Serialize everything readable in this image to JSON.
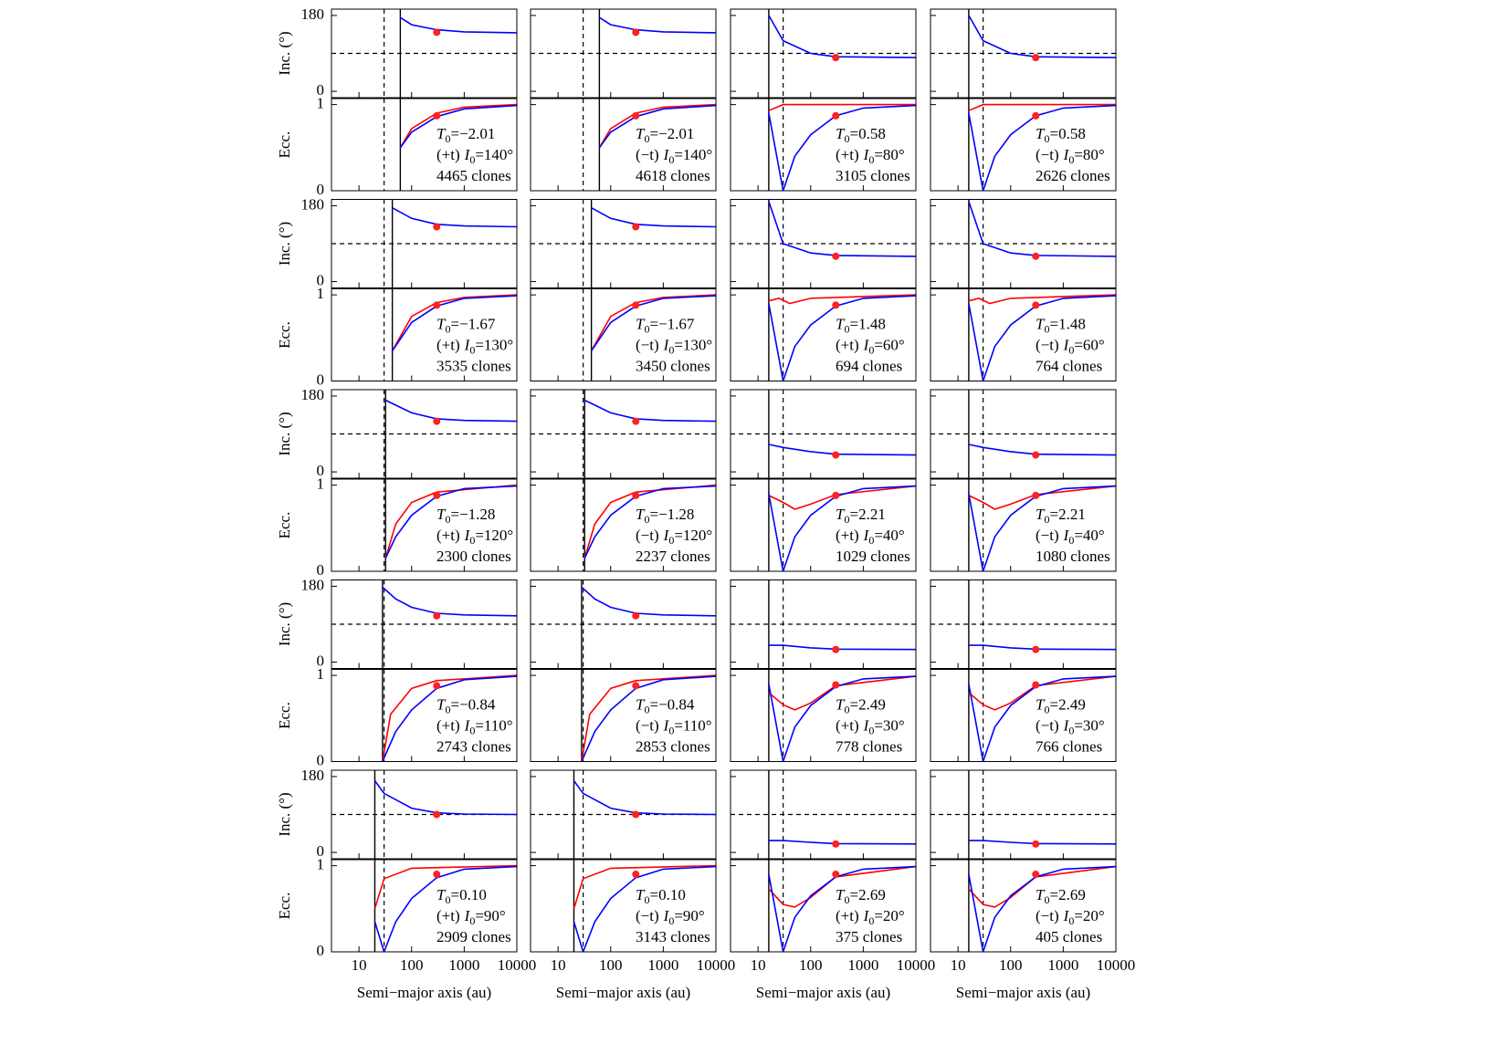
{
  "chart_data": {
    "type": "line",
    "xscale": "log",
    "x_label": "Semi−major axis (au)",
    "inc_label": "Inc. (°)",
    "ecc_label": "Ecc.",
    "t0_symbol": "T",
    "i0_symbol": "I",
    "sub": "0",
    "equals": "=",
    "xlim": [
      3,
      10000
    ],
    "xticks": [
      10,
      100,
      1000,
      10000
    ],
    "inc_ylim": [
      -15,
      195
    ],
    "inc_yticks": [
      0,
      180
    ],
    "ecc_ylim": [
      0,
      1.07
    ],
    "ecc_yticks": [
      0,
      1
    ],
    "inc_ref": 90,
    "a_ref": 30,
    "dot_a": 300,
    "curve_colors": {
      "upper": "#ff0000",
      "lower": "#0000ff"
    },
    "dot_color": "#ff2020",
    "rows": [
      {
        "groups": [
          {
            "T0": "−2.01",
            "I0": "140°",
            "a_min": 61,
            "dot_inc": 140,
            "dot_ecc": 0.87,
            "runs": [
              {
                "dir": "(+t)",
                "clones": "4465 clones"
              },
              {
                "dir": "(−t)",
                "clones": "4618 clones"
              }
            ],
            "inc_curve": {
              "x": [
                61,
                100,
                300,
                1000,
                10000
              ],
              "y": [
                175,
                158,
                146,
                141,
                139
              ]
            },
            "ecc_upper": {
              "x": [
                61,
                100,
                300,
                1000,
                10000
              ],
              "y": [
                0.5,
                0.72,
                0.9,
                0.97,
                1.0
              ]
            },
            "ecc_lower": {
              "x": [
                61,
                100,
                300,
                1000,
                10000
              ],
              "y": [
                0.5,
                0.68,
                0.86,
                0.95,
                0.99
              ]
            }
          },
          {
            "T0": "0.58",
            "I0": "80°",
            "a_min": 16,
            "dot_inc": 80,
            "dot_ecc": 0.87,
            "runs": [
              {
                "dir": "(+t)",
                "clones": "3105 clones"
              },
              {
                "dir": "(−t)",
                "clones": "2626 clones"
              }
            ],
            "inc_curve": {
              "x": [
                16,
                30,
                100,
                300,
                10000
              ],
              "y": [
                180,
                120,
                90,
                82,
                80
              ]
            },
            "ecc_upper": {
              "x": [
                16,
                30,
                10000
              ],
              "y": [
                0.93,
                1.0,
                1.0
              ]
            },
            "ecc_lower": {
              "x": [
                16,
                30,
                50,
                100,
                300,
                1000,
                10000
              ],
              "y": [
                0.9,
                0,
                0.4,
                0.65,
                0.87,
                0.96,
                0.99
              ]
            }
          }
        ]
      },
      {
        "groups": [
          {
            "T0": "−1.67",
            "I0": "130°",
            "a_min": 43,
            "dot_inc": 130,
            "dot_ecc": 0.88,
            "runs": [
              {
                "dir": "(+t)",
                "clones": "3535 clones"
              },
              {
                "dir": "(−t)",
                "clones": "3450 clones"
              }
            ],
            "inc_curve": {
              "x": [
                43,
                100,
                300,
                1000,
                10000
              ],
              "y": [
                175,
                150,
                136,
                132,
                130
              ]
            },
            "ecc_upper": {
              "x": [
                43,
                100,
                300,
                1000,
                10000
              ],
              "y": [
                0.35,
                0.75,
                0.91,
                0.97,
                1.0
              ]
            },
            "ecc_lower": {
              "x": [
                43,
                100,
                300,
                1000,
                10000
              ],
              "y": [
                0.35,
                0.68,
                0.87,
                0.96,
                0.99
              ]
            }
          },
          {
            "T0": "1.48",
            "I0": "60°",
            "a_min": 16,
            "dot_inc": 60,
            "dot_ecc": 0.88,
            "runs": [
              {
                "dir": "(+t)",
                "clones": "694 clones"
              },
              {
                "dir": "(−t)",
                "clones": "764 clones"
              }
            ],
            "inc_curve": {
              "x": [
                16,
                30,
                100,
                300,
                10000
              ],
              "y": [
                190,
                90,
                68,
                62,
                60
              ]
            },
            "ecc_upper": {
              "x": [
                16,
                25,
                40,
                100,
                10000
              ],
              "y": [
                0.93,
                0.96,
                0.9,
                0.96,
                1.0
              ]
            },
            "ecc_lower": {
              "x": [
                16,
                30,
                50,
                100,
                300,
                1000,
                10000
              ],
              "y": [
                0.9,
                0,
                0.4,
                0.65,
                0.87,
                0.96,
                0.99
              ]
            }
          }
        ]
      },
      {
        "groups": [
          {
            "T0": "−1.28",
            "I0": "120°",
            "a_min": 32,
            "dot_inc": 120,
            "dot_ecc": 0.88,
            "runs": [
              {
                "dir": "(+t)",
                "clones": "2300 clones"
              },
              {
                "dir": "(−t)",
                "clones": "2237 clones"
              }
            ],
            "inc_curve": {
              "x": [
                32,
                100,
                300,
                1000,
                10000
              ],
              "y": [
                170,
                140,
                126,
                122,
                120
              ]
            },
            "ecc_upper": {
              "x": [
                32,
                50,
                100,
                300,
                10000
              ],
              "y": [
                0.15,
                0.55,
                0.8,
                0.92,
                1.0
              ]
            },
            "ecc_lower": {
              "x": [
                32,
                50,
                100,
                300,
                1000,
                10000
              ],
              "y": [
                0.15,
                0.4,
                0.65,
                0.87,
                0.96,
                0.99
              ]
            }
          },
          {
            "T0": "2.21",
            "I0": "40°",
            "a_min": 16,
            "dot_inc": 40,
            "dot_ecc": 0.88,
            "runs": [
              {
                "dir": "(+t)",
                "clones": "1029 clones"
              },
              {
                "dir": "(−t)",
                "clones": "1080 clones"
              }
            ],
            "inc_curve": {
              "x": [
                16,
                30,
                100,
                300,
                10000
              ],
              "y": [
                65,
                58,
                48,
                42,
                40
              ]
            },
            "ecc_upper": {
              "x": [
                16,
                30,
                50,
                100,
                300,
                10000
              ],
              "y": [
                0.88,
                0.8,
                0.72,
                0.78,
                0.89,
                0.99
              ]
            },
            "ecc_lower": {
              "x": [
                16,
                30,
                50,
                100,
                300,
                1000,
                10000
              ],
              "y": [
                0.9,
                0,
                0.4,
                0.65,
                0.87,
                0.96,
                0.99
              ]
            }
          }
        ]
      },
      {
        "groups": [
          {
            "T0": "−0.84",
            "I0": "110°",
            "a_min": 28,
            "dot_inc": 110,
            "dot_ecc": 0.88,
            "runs": [
              {
                "dir": "(+t)",
                "clones": "2743 clones"
              },
              {
                "dir": "(−t)",
                "clones": "2853 clones"
              }
            ],
            "inc_curve": {
              "x": [
                28,
                50,
                100,
                300,
                1000,
                10000
              ],
              "y": [
                178,
                150,
                130,
                116,
                112,
                110
              ]
            },
            "ecc_upper": {
              "x": [
                28,
                40,
                100,
                300,
                10000
              ],
              "y": [
                0,
                0.55,
                0.85,
                0.94,
                1.0
              ]
            },
            "ecc_lower": {
              "x": [
                28,
                50,
                100,
                300,
                1000,
                10000
              ],
              "y": [
                0,
                0.35,
                0.6,
                0.85,
                0.95,
                0.99
              ]
            }
          },
          {
            "T0": "2.49",
            "I0": "30°",
            "a_min": 16,
            "dot_inc": 30,
            "dot_ecc": 0.89,
            "runs": [
              {
                "dir": "(+t)",
                "clones": "778 clones"
              },
              {
                "dir": "(−t)",
                "clones": "766 clones"
              }
            ],
            "inc_curve": {
              "x": [
                16,
                30,
                100,
                300,
                10000
              ],
              "y": [
                40,
                40,
                34,
                31,
                30
              ]
            },
            "ecc_upper": {
              "x": [
                16,
                30,
                50,
                100,
                300,
                10000
              ],
              "y": [
                0.8,
                0.66,
                0.6,
                0.68,
                0.88,
                0.99
              ]
            },
            "ecc_lower": {
              "x": [
                16,
                30,
                50,
                100,
                300,
                1000,
                10000
              ],
              "y": [
                0.9,
                0,
                0.4,
                0.65,
                0.87,
                0.96,
                0.99
              ]
            }
          }
        ]
      },
      {
        "groups": [
          {
            "T0": "0.10",
            "I0": "90°",
            "a_min": 20,
            "dot_inc": 90,
            "dot_ecc": 0.9,
            "runs": [
              {
                "dir": "(+t)",
                "clones": "2909 clones"
              },
              {
                "dir": "(−t)",
                "clones": "3143 clones"
              }
            ],
            "inc_curve": {
              "x": [
                20,
                30,
                100,
                300,
                1000,
                10000
              ],
              "y": [
                170,
                140,
                105,
                94,
                91,
                90
              ]
            },
            "ecc_upper": {
              "x": [
                20,
                30,
                100,
                10000
              ],
              "y": [
                0.5,
                0.85,
                0.97,
                1.0
              ]
            },
            "ecc_lower": {
              "x": [
                20,
                30,
                50,
                100,
                300,
                1000,
                10000
              ],
              "y": [
                0.35,
                0,
                0.35,
                0.62,
                0.86,
                0.96,
                0.99
              ]
            }
          },
          {
            "T0": "2.69",
            "I0": "20°",
            "a_min": 16,
            "dot_inc": 20,
            "dot_ecc": 0.9,
            "runs": [
              {
                "dir": "(+t)",
                "clones": "375 clones"
              },
              {
                "dir": "(−t)",
                "clones": "405 clones"
              }
            ],
            "inc_curve": {
              "x": [
                16,
                30,
                100,
                300,
                10000
              ],
              "y": [
                28,
                28,
                24,
                21,
                20
              ]
            },
            "ecc_upper": {
              "x": [
                16,
                30,
                50,
                100,
                300,
                10000
              ],
              "y": [
                0.73,
                0.55,
                0.52,
                0.63,
                0.87,
                0.99
              ]
            },
            "ecc_lower": {
              "x": [
                16,
                30,
                50,
                100,
                300,
                1000,
                10000
              ],
              "y": [
                0.9,
                0,
                0.4,
                0.65,
                0.87,
                0.96,
                0.99
              ]
            }
          }
        ]
      }
    ]
  }
}
